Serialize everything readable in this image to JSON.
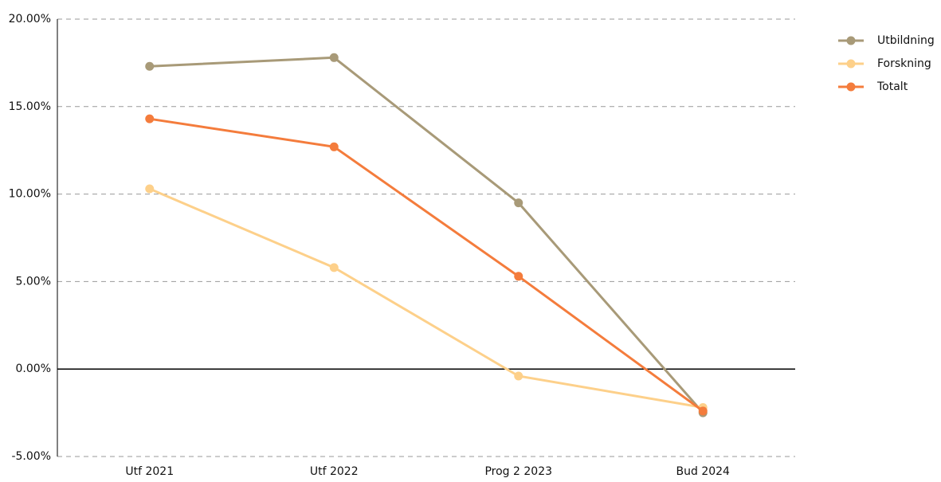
{
  "chart_data": {
    "type": "line",
    "categories": [
      "Utf 2021",
      "Utf 2022",
      "Prog 2 2023",
      "Bud 2024"
    ],
    "series": [
      {
        "name": "Utbildning",
        "color": "#a89a78",
        "values": [
          17.3,
          17.8,
          9.5,
          -2.5
        ]
      },
      {
        "name": "Forskning",
        "color": "#fdd08a",
        "values": [
          10.3,
          5.8,
          -0.4,
          -2.2
        ]
      },
      {
        "name": "Totalt",
        "color": "#f47c3c",
        "values": [
          14.3,
          12.7,
          5.3,
          -2.4
        ]
      }
    ],
    "ylim": [
      -5,
      20
    ],
    "yticks": [
      {
        "value": -5,
        "label": "-5.00%"
      },
      {
        "value": 0,
        "label": "0.00%"
      },
      {
        "value": 5,
        "label": "5.00%"
      },
      {
        "value": 10,
        "label": "10.00%"
      },
      {
        "value": 15,
        "label": "15.00%"
      },
      {
        "value": 20,
        "label": "20.00%"
      }
    ],
    "grid": true,
    "legend": "top-right"
  }
}
